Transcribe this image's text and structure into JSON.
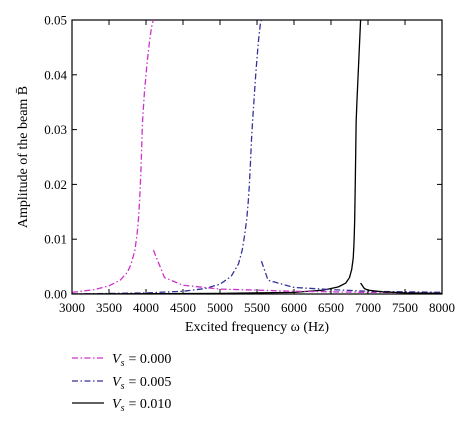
{
  "chart_data": {
    "type": "line",
    "title": "",
    "xlabel": "Excited frequency ω (Hz)",
    "ylabel": "Amplitude of the beam B̄",
    "xlim": [
      3000,
      8000
    ],
    "ylim": [
      0,
      0.05
    ],
    "xticks": [
      "3000",
      "3500",
      "4000",
      "4500",
      "5000",
      "5500",
      "6000",
      "6500",
      "7000",
      "7500",
      "8000"
    ],
    "yticks": [
      "0.00",
      "0.01",
      "0.02",
      "0.03",
      "0.04",
      "0.05"
    ],
    "grid": false,
    "legend_position": "below",
    "series": [
      {
        "name": "V_s = 0.000",
        "color": "#cc33cc",
        "dash": "dash-dot",
        "x": [
          3000,
          3300,
          3500,
          3650,
          3750,
          3800,
          3850,
          3880,
          3900,
          3915,
          3930,
          3940,
          3950,
          3960,
          3970,
          3980,
          3990,
          4000,
          4010,
          4020,
          4030,
          4040,
          4050,
          4060,
          4070,
          4080,
          4090,
          4100
        ],
        "y": [
          0.0003,
          0.0008,
          0.0015,
          0.0025,
          0.004,
          0.0055,
          0.008,
          0.011,
          0.014,
          0.0175,
          0.022,
          0.026,
          0.0305,
          0.033,
          0.035,
          0.037,
          0.0385,
          0.04,
          0.0415,
          0.0428,
          0.044,
          0.0452,
          0.0463,
          0.0473,
          0.0482,
          0.049,
          0.0496,
          0.05
        ]
      },
      {
        "name": "V_s = 0.005",
        "color": "#333399",
        "dash": "dash-dot",
        "x": [
          3000,
          4000,
          4500,
          4800,
          5000,
          5150,
          5250,
          5300,
          5330,
          5360,
          5380,
          5395,
          5410,
          5425,
          5440,
          5455,
          5470,
          5485,
          5500,
          5515,
          5530,
          5545,
          5560
        ],
        "y": [
          0.0,
          0.0002,
          0.0005,
          0.001,
          0.0018,
          0.0032,
          0.0055,
          0.008,
          0.0105,
          0.0135,
          0.0165,
          0.0195,
          0.0235,
          0.028,
          0.0315,
          0.0345,
          0.0375,
          0.0405,
          0.043,
          0.0455,
          0.0475,
          0.0492,
          0.05
        ]
      },
      {
        "name": "V_s = 0.010",
        "color": "#000000",
        "dash": "solid",
        "x": [
          3000,
          5000,
          6000,
          6400,
          6600,
          6700,
          6750,
          6780,
          6800,
          6810,
          6815,
          6820,
          6830,
          6840,
          6850,
          6860,
          6870,
          6880,
          6890,
          6900
        ],
        "y": [
          0.0,
          0.0001,
          0.0003,
          0.0007,
          0.0013,
          0.002,
          0.003,
          0.0045,
          0.0065,
          0.009,
          0.011,
          0.0135,
          0.022,
          0.0315,
          0.035,
          0.038,
          0.041,
          0.044,
          0.047,
          0.05
        ]
      },
      {
        "name": "",
        "color": "#cc33cc",
        "dash": "dash-dot",
        "x": [
          4100,
          4250,
          4500,
          5000,
          6000,
          7000,
          8000
        ],
        "y": [
          0.008,
          0.003,
          0.0016,
          0.0009,
          0.0005,
          0.0003,
          0.0002
        ]
      },
      {
        "name": "",
        "color": "#333399",
        "dash": "dash-dot",
        "x": [
          5560,
          5650,
          6000,
          6500,
          7000,
          8000
        ],
        "y": [
          0.006,
          0.0025,
          0.0012,
          0.0008,
          0.0005,
          0.0003
        ]
      },
      {
        "name": "",
        "color": "#000000",
        "dash": "solid",
        "x": [
          6900,
          6950,
          7000,
          7200,
          7500,
          8000
        ],
        "y": [
          0.002,
          0.001,
          0.0007,
          0.0004,
          0.0002,
          0.0001
        ]
      }
    ]
  },
  "legend": {
    "items": [
      {
        "var": "V",
        "sub": "s",
        "value": "= 0.000"
      },
      {
        "var": "V",
        "sub": "s",
        "value": "= 0.005"
      },
      {
        "var": "V",
        "sub": "s",
        "value": "= 0.010"
      }
    ]
  }
}
